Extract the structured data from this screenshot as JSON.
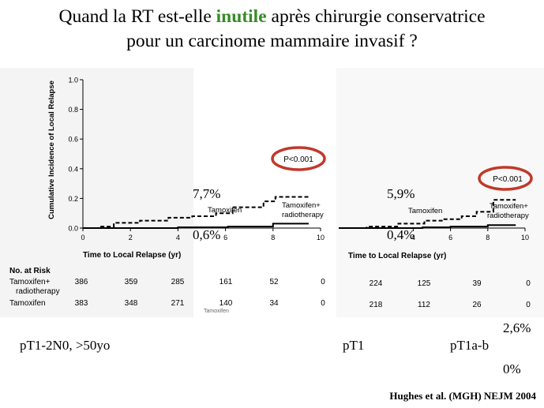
{
  "slide": {
    "title_part1": "Quand la RT est-elle ",
    "title_highlight": "inutile",
    "title_part2": " après chirurgie conservatrice",
    "title_line2": "pour un carcinome mammaire invasif ?",
    "citation": "Hughes et al. (MGH) NEJM 2004",
    "colors": {
      "highlight": "#3a8a2a",
      "pvalue_circle": "#c0392b"
    }
  },
  "annotations": {
    "left_rt_free": "7,7%",
    "left_rt": "0,6%",
    "right_rt_free": "5,9%",
    "right_rt": "0,4%",
    "pt1a_rt_free": "2,6%",
    "pt1a_rt": "0%",
    "group_all": "pT1-2N0, >50yo",
    "group_pt1": "pT1",
    "group_pt1ab": "pT1a-b"
  },
  "risk_table": {
    "header": "No. at Risk",
    "row1_label_a": "Tamoxifen+",
    "row1_label_b": "radiotherapy",
    "row2_label": "Tamoxifen",
    "left_row1": [
      "386",
      "359",
      "285",
      "161",
      "52",
      "0"
    ],
    "left_row2": [
      "383",
      "348",
      "271",
      "140",
      "34",
      "0"
    ],
    "right_row1": [
      "224",
      "125",
      "39",
      "0"
    ],
    "right_row2": [
      "218",
      "112",
      "26",
      "0"
    ],
    "overlap_text": "Tamoxifen"
  },
  "chart_data": [
    {
      "type": "line",
      "ylabel": "Cumulative Incidence of Local Relapse",
      "xlabel": "Time to Local Relapse (yr)",
      "xlim": [
        0,
        10
      ],
      "ylim": [
        0,
        1.0
      ],
      "x_ticks": [
        "0",
        "2",
        "4",
        "6",
        "8",
        "10"
      ],
      "y_ticks": [
        "0.0",
        "0.2",
        "0.4",
        "0.6",
        "0.8",
        "1.0"
      ],
      "p_value": "P<0.001",
      "series": [
        {
          "name": "Tamoxifen",
          "style": "dashed",
          "x": [
            0,
            0.7,
            1.3,
            2.4,
            3.6,
            4.6,
            5.6,
            6.3,
            7.6,
            8.1,
            9.5
          ],
          "y": [
            0,
            0.01,
            0.035,
            0.05,
            0.07,
            0.08,
            0.1,
            0.14,
            0.18,
            0.21,
            0.21
          ]
        },
        {
          "name": "Tamoxifen+ radiotherapy",
          "style": "solid",
          "x": [
            0,
            4,
            6.1,
            8,
            9.5
          ],
          "y": [
            0,
            0.005,
            0.01,
            0.03,
            0.03
          ]
        }
      ]
    },
    {
      "type": "line",
      "xlabel": "Time to Local Relapse (yr)",
      "xlim": [
        0,
        10
      ],
      "ylim": [
        0,
        1.0
      ],
      "x_ticks": [
        "4",
        "6",
        "8",
        "10"
      ],
      "p_value": "P<0.001",
      "series": [
        {
          "name": "Tamoxifen",
          "style": "dashed",
          "x": [
            0,
            1.5,
            3.2,
            4.6,
            5.6,
            6.6,
            7.4,
            8.3,
            9.5
          ],
          "y": [
            0,
            0.01,
            0.03,
            0.05,
            0.06,
            0.08,
            0.11,
            0.19,
            0.19
          ]
        },
        {
          "name": "Tamoxifen+ radiotherapy",
          "style": "solid",
          "x": [
            0,
            4.5,
            6,
            8,
            9.5
          ],
          "y": [
            0,
            0.005,
            0.01,
            0.02,
            0.02
          ]
        }
      ]
    }
  ]
}
